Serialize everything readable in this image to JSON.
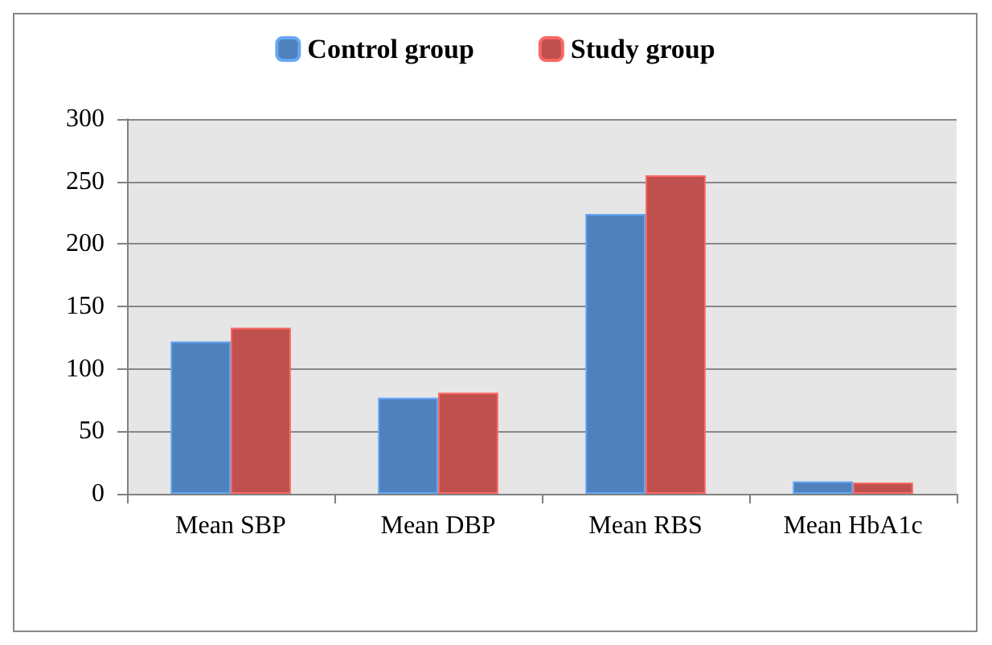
{
  "chart_data": {
    "type": "bar",
    "categories": [
      "Mean SBP",
      "Mean DBP",
      "Mean RBS",
      "Mean HbA1c"
    ],
    "series": [
      {
        "name": "Control group",
        "color": "#4f81bd",
        "values": [
          122,
          77,
          224,
          10
        ]
      },
      {
        "name": "Study group",
        "color": "#c0504d",
        "values": [
          133,
          81,
          255,
          9
        ]
      }
    ],
    "ylim": [
      0,
      300
    ],
    "yticks": [
      0,
      50,
      100,
      150,
      200,
      250,
      300
    ],
    "grid": "y",
    "legend": "top"
  }
}
